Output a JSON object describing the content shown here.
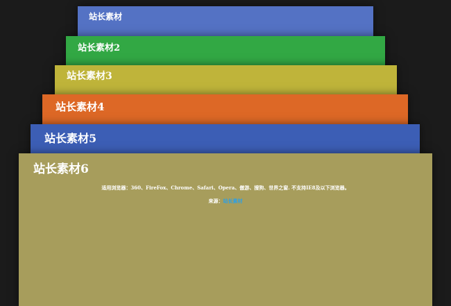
{
  "cards": [
    {
      "title": "站长素材",
      "color": "#5472c4"
    },
    {
      "title": "站长素材2",
      "color": "#32a844"
    },
    {
      "title": "站长素材3",
      "color": "#bfb43a"
    },
    {
      "title": "站长素材4",
      "color": "#dd6826"
    },
    {
      "title": "站长素材5",
      "color": "#3c5eb5"
    },
    {
      "title": "站长素材6",
      "color": "#a79d5c"
    }
  ],
  "info": {
    "browsers": "适用浏览器：360、FireFox、Chrome、Safari、Opera、傲游、搜狗、世界之窗. 不支持IE8及以下浏览器。",
    "source_label": "来源：",
    "source_link": "站长素材",
    "link_color": "#2aa0e8"
  }
}
